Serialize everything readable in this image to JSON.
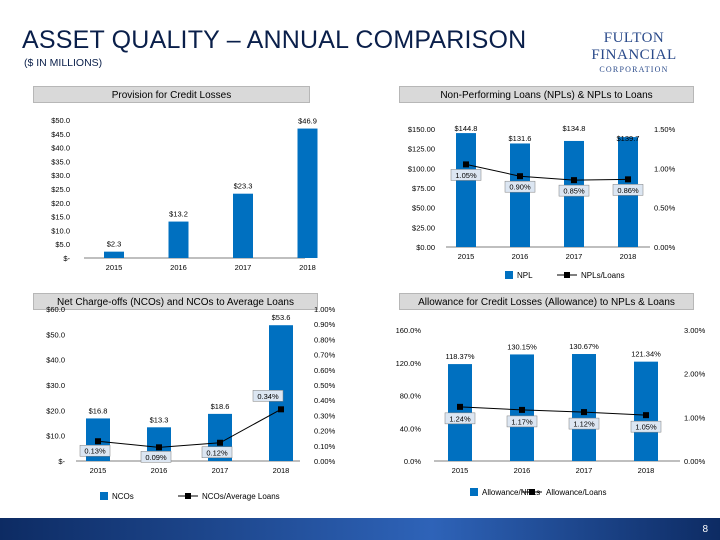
{
  "header": {
    "title": "ASSET QUALITY – ANNUAL COMPARISON",
    "subtitle": "($ IN MILLIONS)",
    "logo_line1": "FULTON FINANCIAL",
    "logo_line2": "CORPORATION"
  },
  "page_number": "8",
  "colors": {
    "bar": "#0070c0",
    "line": "#000000",
    "footer": "#1f4e9c"
  },
  "chart_data": [
    {
      "id": "provision",
      "type": "bar",
      "title": "Provision for Credit Losses",
      "categories": [
        "2015",
        "2016",
        "2017",
        "2018"
      ],
      "values": [
        2.3,
        13.2,
        23.3,
        46.9
      ],
      "data_labels": [
        "$2.3",
        "$13.2",
        "$23.3",
        "$46.9"
      ],
      "ylim": [
        0,
        50
      ],
      "yticks": [
        0,
        5,
        10,
        15,
        20,
        25,
        30,
        35,
        40,
        45,
        50
      ],
      "ytick_labels": [
        "$-",
        "$5.0",
        "$10.0",
        "$15.0",
        "$20.0",
        "$25.0",
        "$30.0",
        "$35.0",
        "$40.0",
        "$45.0",
        "$50.0"
      ]
    },
    {
      "id": "npl",
      "type": "bar+line",
      "title": "Non-Performing Loans (NPLs) & NPLs to Loans",
      "categories": [
        "2015",
        "2016",
        "2017",
        "2018"
      ],
      "series": [
        {
          "name": "NPL",
          "type": "bar",
          "values": [
            144.8,
            131.6,
            134.8,
            139.7
          ],
          "data_labels": [
            "$144.8",
            "$131.6",
            "$134.8",
            "$139.7"
          ]
        },
        {
          "name": "NPLs/Loans",
          "type": "line",
          "values": [
            1.05,
            0.9,
            0.85,
            0.86
          ],
          "data_labels": [
            "1.05%",
            "0.90%",
            "0.85%",
            "0.86%"
          ]
        }
      ],
      "ylim_left": [
        0,
        150
      ],
      "yticks_left": [
        0,
        25,
        50,
        75,
        100,
        125,
        150
      ],
      "ytick_labels_left": [
        "$0.00",
        "$25.00",
        "$50.00",
        "$75.00",
        "$100.00",
        "$125.00",
        "$150.00"
      ],
      "ylim_right": [
        0,
        1.5
      ],
      "yticks_right": [
        0,
        0.5,
        1.0,
        1.5
      ],
      "ytick_labels_right": [
        "0.00%",
        "0.50%",
        "1.00%",
        "1.50%"
      ]
    },
    {
      "id": "nco",
      "type": "bar+line",
      "title": "Net Charge-offs (NCOs) and NCOs to Average Loans",
      "categories": [
        "2015",
        "2016",
        "2017",
        "2018"
      ],
      "series": [
        {
          "name": "NCOs",
          "type": "bar",
          "values": [
            16.8,
            13.3,
            18.6,
            53.6
          ],
          "data_labels": [
            "$16.8",
            "$13.3",
            "$18.6",
            "$53.6"
          ]
        },
        {
          "name": "NCOs/Average Loans",
          "type": "line",
          "values": [
            0.13,
            0.09,
            0.12,
            0.34
          ],
          "data_labels": [
            "0.13%",
            "0.09%",
            "0.12%",
            "0.34%"
          ]
        }
      ],
      "ylim_left": [
        0,
        60
      ],
      "yticks_left": [
        0,
        10,
        20,
        30,
        40,
        50,
        60
      ],
      "ytick_labels_left": [
        "$-",
        "$10.0",
        "$20.0",
        "$30.0",
        "$40.0",
        "$50.0",
        "$60.0"
      ],
      "ylim_right": [
        0,
        1.0
      ],
      "yticks_right": [
        0,
        0.1,
        0.2,
        0.3,
        0.4,
        0.5,
        0.6,
        0.7,
        0.8,
        0.9,
        1.0
      ],
      "ytick_labels_right": [
        "0.00%",
        "0.10%",
        "0.20%",
        "0.30%",
        "0.40%",
        "0.50%",
        "0.60%",
        "0.70%",
        "0.80%",
        "0.90%",
        "1.00%"
      ]
    },
    {
      "id": "allowance",
      "type": "bar+line",
      "title": "Allowance for Credit Losses (Allowance) to NPLs & Loans",
      "categories": [
        "2015",
        "2016",
        "2017",
        "2018"
      ],
      "series": [
        {
          "name": "Allowance/NPLs",
          "type": "bar",
          "values": [
            118.37,
            130.15,
            130.67,
            121.34
          ],
          "data_labels": [
            "118.37%",
            "130.15%",
            "130.67%",
            "121.34%"
          ]
        },
        {
          "name": "Allowance/Loans",
          "type": "line",
          "values": [
            1.24,
            1.17,
            1.12,
            1.05
          ],
          "data_labels": [
            "1.24%",
            "1.17%",
            "1.12%",
            "1.05%"
          ]
        }
      ],
      "ylim_left": [
        0,
        160
      ],
      "yticks_left": [
        0,
        40,
        80,
        120,
        160
      ],
      "ytick_labels_left": [
        "0.0%",
        "40.0%",
        "80.0%",
        "120.0%",
        "160.0%"
      ],
      "ylim_right": [
        0,
        3.0
      ],
      "yticks_right": [
        0,
        1.0,
        2.0,
        3.0
      ],
      "ytick_labels_right": [
        "0.00%",
        "1.00%",
        "2.00%",
        "3.00%"
      ]
    }
  ]
}
